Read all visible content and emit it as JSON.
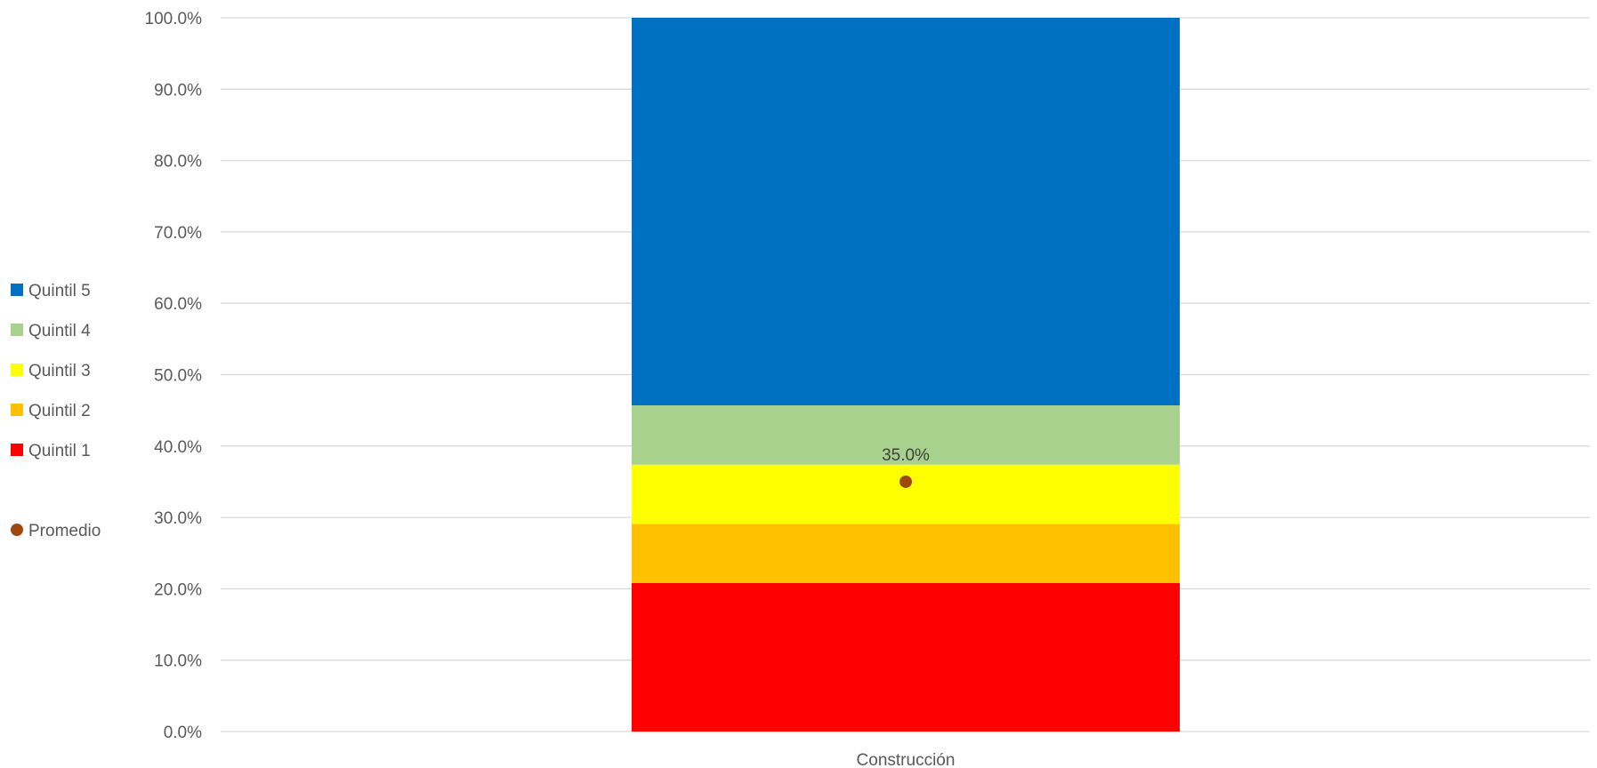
{
  "chart_data": {
    "type": "bar",
    "stacked": true,
    "categories": [
      "Construcción"
    ],
    "series": [
      {
        "name": "Quintil 1",
        "values": [
          20.8
        ],
        "color": "#FF0000"
      },
      {
        "name": "Quintil 2",
        "values": [
          8.3
        ],
        "color": "#FFC000"
      },
      {
        "name": "Quintil 3",
        "values": [
          8.3
        ],
        "color": "#FFFF00"
      },
      {
        "name": "Quintil 4",
        "values": [
          8.3
        ],
        "color": "#A9D18E"
      },
      {
        "name": "Quintil 5",
        "values": [
          54.3
        ],
        "color": "#0070C0"
      }
    ],
    "average": {
      "name": "Promedio",
      "values": [
        35.0
      ],
      "label": "35.0%",
      "color": "#9E480E"
    },
    "ylim": [
      0,
      100
    ],
    "yticks": [
      0,
      10,
      20,
      30,
      40,
      50,
      60,
      70,
      80,
      90,
      100
    ],
    "ytick_labels": [
      "0.0%",
      "10.0%",
      "20.0%",
      "30.0%",
      "40.0%",
      "50.0%",
      "60.0%",
      "70.0%",
      "80.0%",
      "90.0%",
      "100.0%"
    ],
    "grid": true,
    "legend_position": "left",
    "legend_order": [
      "Quintil 5",
      "Quintil 4",
      "Quintil 3",
      "Quintil 2",
      "Quintil 1",
      "Promedio"
    ]
  }
}
